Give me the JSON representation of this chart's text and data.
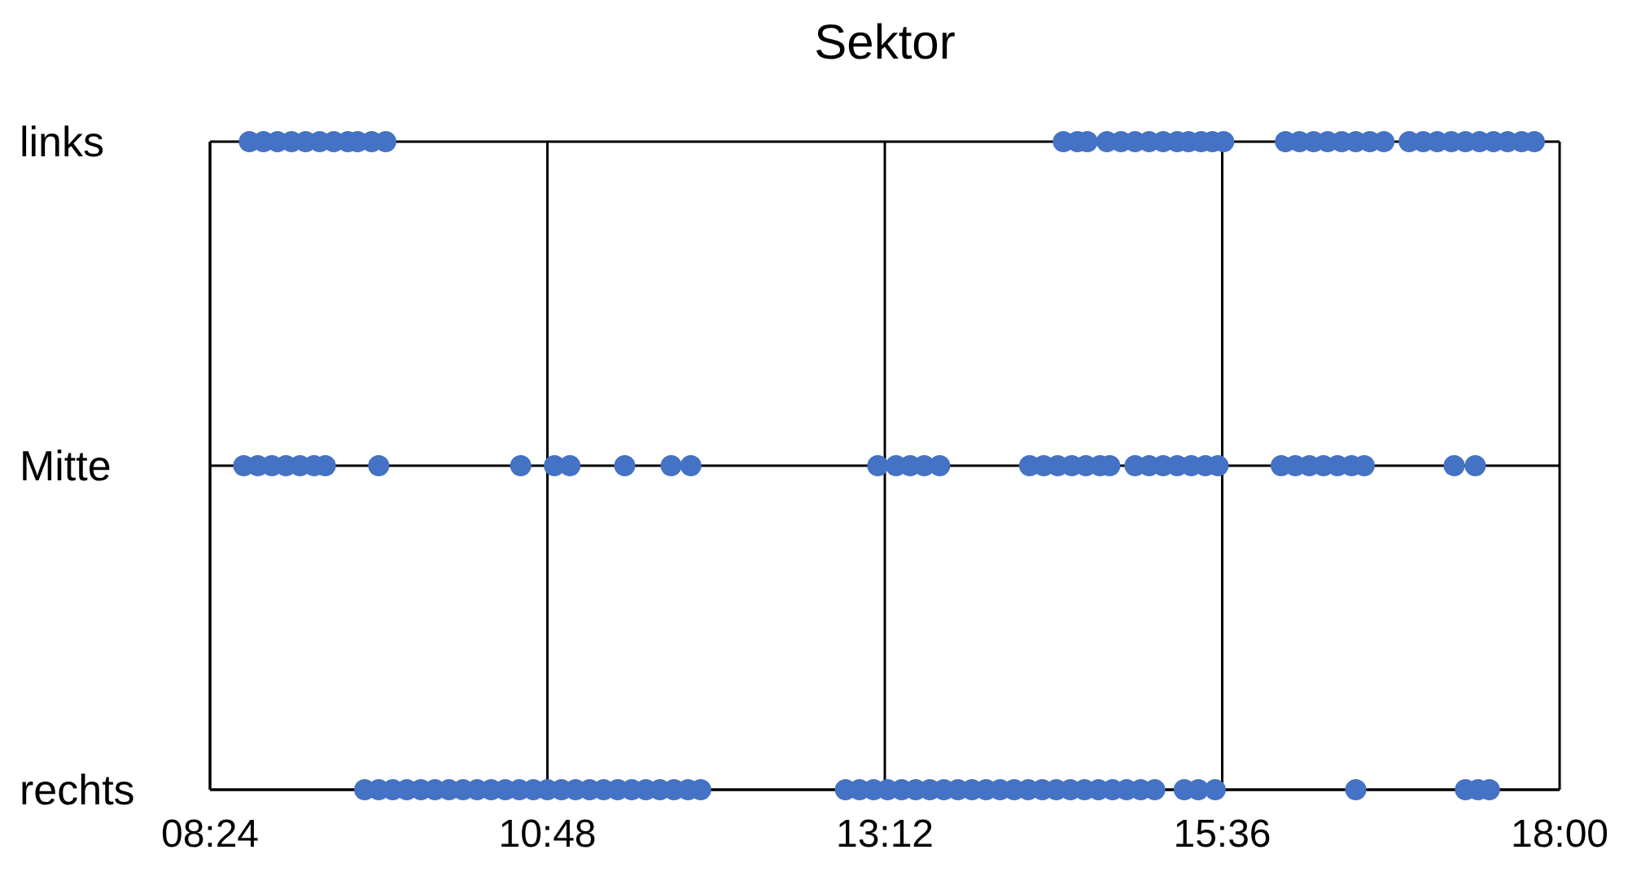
{
  "chart_data": {
    "type": "scatter",
    "title": "Sektor",
    "marker": "circle",
    "grid": true,
    "orientation": "horizontal",
    "categories": [
      "links",
      "Mitte",
      "rechts"
    ],
    "xlim": [
      8.4,
      18.0
    ],
    "xticks": [
      {
        "value": 8.4,
        "label": "08:24"
      },
      {
        "value": 10.8,
        "label": "10:48"
      },
      {
        "value": 13.2,
        "label": "13:12"
      },
      {
        "value": 15.6,
        "label": "15:36"
      },
      {
        "value": 18.0,
        "label": "18:00"
      }
    ],
    "series": [
      {
        "color": "#4472c4",
        "values": [
          8.68,
          8.64,
          9.5
        ]
      },
      {
        "color": "#4472c4",
        "values": [
          8.78,
          8.74,
          9.6
        ]
      },
      {
        "color": "#4472c4",
        "values": [
          8.88,
          8.84,
          9.7
        ]
      },
      {
        "color": "#4472c4",
        "values": [
          8.98,
          8.94,
          9.8
        ]
      },
      {
        "color": "#4472c4",
        "values": [
          9.08,
          9.04,
          9.9
        ]
      },
      {
        "color": "#4472c4",
        "values": [
          9.18,
          9.14,
          10.0
        ]
      },
      {
        "color": "#4472c4",
        "values": [
          9.28,
          9.22,
          10.1
        ]
      },
      {
        "color": "#4472c4",
        "values": [
          9.38,
          9.6,
          10.2
        ]
      },
      {
        "color": "#4472c4",
        "values": [
          9.45,
          10.61,
          10.3
        ]
      },
      {
        "color": "#4472c4",
        "values": [
          9.55,
          10.85,
          10.4
        ]
      },
      {
        "color": "#4472c4",
        "values": [
          9.65,
          10.96,
          10.5
        ]
      },
      {
        "color": "#4472c4",
        "values": [
          14.47,
          11.35,
          10.6
        ]
      },
      {
        "color": "#4472c4",
        "values": [
          14.57,
          11.68,
          10.7
        ]
      },
      {
        "color": "#4472c4",
        "values": [
          14.64,
          11.82,
          10.8
        ]
      },
      {
        "color": "#4472c4",
        "values": [
          14.78,
          13.15,
          10.9
        ]
      },
      {
        "color": "#4472c4",
        "values": [
          14.88,
          13.28,
          11.0
        ]
      },
      {
        "color": "#4472c4",
        "values": [
          14.98,
          13.38,
          11.1
        ]
      },
      {
        "color": "#4472c4",
        "values": [
          15.08,
          13.48,
          11.2
        ]
      },
      {
        "color": "#4472c4",
        "values": [
          15.18,
          13.59,
          11.3
        ]
      },
      {
        "color": "#4472c4",
        "values": [
          15.28,
          14.23,
          11.4
        ]
      },
      {
        "color": "#4472c4",
        "values": [
          15.36,
          14.33,
          11.5
        ]
      },
      {
        "color": "#4472c4",
        "values": [
          15.45,
          14.43,
          11.6
        ]
      },
      {
        "color": "#4472c4",
        "values": [
          15.53,
          14.53,
          11.7
        ]
      },
      {
        "color": "#4472c4",
        "values": [
          15.61,
          14.63,
          11.8
        ]
      },
      {
        "color": "#4472c4",
        "values": [
          16.05,
          14.73,
          11.89
        ]
      },
      {
        "color": "#4472c4",
        "values": [
          16.15,
          14.8,
          12.92
        ]
      },
      {
        "color": "#4472c4",
        "values": [
          16.25,
          14.98,
          13.02
        ]
      },
      {
        "color": "#4472c4",
        "values": [
          16.35,
          15.08,
          13.12
        ]
      },
      {
        "color": "#4472c4",
        "values": [
          16.45,
          15.18,
          13.22
        ]
      },
      {
        "color": "#4472c4",
        "values": [
          16.55,
          15.28,
          13.32
        ]
      },
      {
        "color": "#4472c4",
        "values": [
          16.65,
          15.38,
          13.42
        ]
      },
      {
        "color": "#4472c4",
        "values": [
          16.75,
          15.48,
          13.52
        ]
      },
      {
        "color": "#4472c4",
        "values": [
          16.93,
          15.57,
          13.62
        ]
      },
      {
        "color": "#4472c4",
        "values": [
          17.03,
          16.02,
          13.72
        ]
      },
      {
        "color": "#4472c4",
        "values": [
          17.13,
          16.12,
          13.82
        ]
      },
      {
        "color": "#4472c4",
        "values": [
          17.23,
          16.22,
          13.92
        ]
      },
      {
        "color": "#4472c4",
        "values": [
          17.33,
          16.32,
          14.02
        ]
      },
      {
        "color": "#4472c4",
        "values": [
          17.43,
          16.42,
          14.12
        ]
      },
      {
        "color": "#4472c4",
        "values": [
          17.53,
          16.52,
          14.22
        ]
      },
      {
        "color": "#4472c4",
        "values": [
          17.63,
          16.61,
          14.32
        ]
      },
      {
        "color": "#4472c4",
        "values": [
          17.73,
          17.25,
          14.42
        ]
      },
      {
        "color": "#4472c4",
        "values": [
          17.82,
          17.4,
          14.52
        ]
      },
      {
        "color": "#4472c4",
        "values": [
          null,
          null,
          14.62
        ]
      },
      {
        "color": "#4472c4",
        "values": [
          null,
          null,
          14.72
        ]
      },
      {
        "color": "#4472c4",
        "values": [
          null,
          null,
          14.82
        ]
      },
      {
        "color": "#4472c4",
        "values": [
          null,
          null,
          14.92
        ]
      },
      {
        "color": "#4472c4",
        "values": [
          null,
          null,
          15.02
        ]
      },
      {
        "color": "#4472c4",
        "values": [
          null,
          null,
          15.12
        ]
      },
      {
        "color": "#4472c4",
        "values": [
          null,
          null,
          15.33
        ]
      },
      {
        "color": "#4472c4",
        "values": [
          null,
          null,
          15.43
        ]
      },
      {
        "color": "#4472c4",
        "values": [
          null,
          null,
          15.55
        ]
      },
      {
        "color": "#4472c4",
        "values": [
          null,
          null,
          16.55
        ]
      },
      {
        "color": "#4472c4",
        "values": [
          null,
          null,
          17.33
        ]
      },
      {
        "color": "#4472c4",
        "values": [
          null,
          null,
          17.42
        ]
      },
      {
        "color": "#4472c4",
        "values": [
          null,
          null,
          17.5
        ]
      }
    ]
  }
}
